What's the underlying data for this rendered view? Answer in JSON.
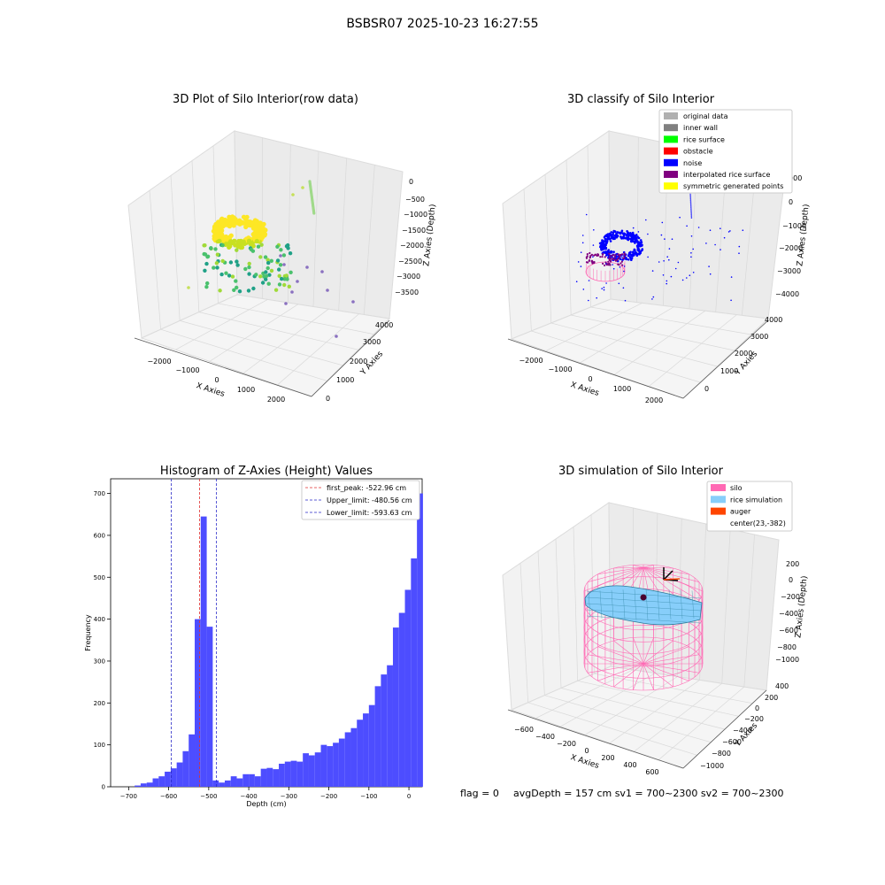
{
  "figure": {
    "suptitle": "BSBSR07 2025-10-23 16:27:55",
    "footer": {
      "flag": "flag = 0",
      "avg": "avgDepth = 157 cm  sv1 = 700~2300  sv2 = 700~2300"
    }
  },
  "colors": {
    "hist_bar": "#4d4dff",
    "first_peak": "#e03030",
    "limits": "#2828c8",
    "silo": "#ff69b4",
    "rice": "#87cefa",
    "auger": "#ff4500",
    "noise": "#0000ff",
    "interp": "#800080",
    "grid": "#d9d9d9"
  },
  "chart_data": [
    {
      "type": "scatter",
      "title": "3D Plot of Silo Interior(row data)",
      "projection": "3d",
      "xlabel": "X Axies",
      "ylabel": "Y Axies",
      "zlabel": "Z Axies (Depth)",
      "x_ticks": [
        "−2000",
        "−1000",
        "0",
        "1000",
        "2000"
      ],
      "y_ticks": [
        "0",
        "1000",
        "2000",
        "3000",
        "4000"
      ],
      "z_ticks": [
        "0",
        "−500",
        "−1000",
        "−1500",
        "−2000",
        "−2500",
        "−3000",
        "−3500"
      ],
      "colormap": "viridis (by depth)",
      "grid": true
    },
    {
      "type": "scatter",
      "title": "3D classify of Silo Interior",
      "projection": "3d",
      "xlabel": "X Axies",
      "ylabel": "Y Axies",
      "zlabel": "Z Axies (Depth)",
      "x_ticks": [
        "−2000",
        "−1000",
        "0",
        "1000",
        "2000"
      ],
      "y_ticks": [
        "0",
        "1000",
        "2000",
        "3000",
        "4000"
      ],
      "z_ticks": [
        "1000",
        "0",
        "−1000",
        "−2000",
        "−3000",
        "−4000"
      ],
      "legend_position": "top-right",
      "legend": [
        {
          "label": "original data",
          "color": "#b0b0b0"
        },
        {
          "label": "inner wall",
          "color": "#808080"
        },
        {
          "label": "rice surface",
          "color": "#00ff00"
        },
        {
          "label": "obstacle",
          "color": "#ff0000"
        },
        {
          "label": "noise",
          "color": "#0000ff"
        },
        {
          "label": "interpolated rice surface",
          "color": "#800080"
        },
        {
          "label": "symmetric generated points",
          "color": "#ffff00"
        }
      ],
      "grid": true
    },
    {
      "type": "bar",
      "title": "Histogram of Z-Axies (Height) Values",
      "xlabel": "Depth (cm)",
      "ylabel": "Frequency",
      "xlim": [
        -745,
        33
      ],
      "ylim": [
        0,
        735
      ],
      "x_ticks": [
        -700,
        -600,
        -500,
        -400,
        -300,
        -200,
        -100,
        0
      ],
      "y_ticks": [
        0,
        100,
        200,
        300,
        400,
        500,
        600,
        700
      ],
      "bins": [
        [
          -685,
          -670,
          3
        ],
        [
          -670,
          -655,
          8
        ],
        [
          -655,
          -640,
          10
        ],
        [
          -640,
          -625,
          20
        ],
        [
          -625,
          -610,
          25
        ],
        [
          -610,
          -595,
          36
        ],
        [
          -595,
          -580,
          44
        ],
        [
          -580,
          -565,
          58
        ],
        [
          -565,
          -550,
          85
        ],
        [
          -550,
          -535,
          125
        ],
        [
          -535,
          -520,
          400
        ],
        [
          -520,
          -505,
          645
        ],
        [
          -505,
          -490,
          382
        ],
        [
          -490,
          -475,
          15
        ],
        [
          -475,
          -460,
          10
        ],
        [
          -460,
          -445,
          15
        ],
        [
          -445,
          -430,
          25
        ],
        [
          -430,
          -415,
          20
        ],
        [
          -415,
          -400,
          30
        ],
        [
          -400,
          -385,
          30
        ],
        [
          -385,
          -370,
          25
        ],
        [
          -370,
          -355,
          43
        ],
        [
          -355,
          -340,
          45
        ],
        [
          -340,
          -325,
          42
        ],
        [
          -325,
          -310,
          55
        ],
        [
          -310,
          -295,
          60
        ],
        [
          -295,
          -280,
          62
        ],
        [
          -280,
          -265,
          60
        ],
        [
          -265,
          -250,
          80
        ],
        [
          -250,
          -235,
          75
        ],
        [
          -235,
          -220,
          82
        ],
        [
          -220,
          -205,
          100
        ],
        [
          -205,
          -190,
          97
        ],
        [
          -190,
          -175,
          105
        ],
        [
          -175,
          -160,
          115
        ],
        [
          -160,
          -145,
          130
        ],
        [
          -145,
          -130,
          140
        ],
        [
          -130,
          -115,
          160
        ],
        [
          -115,
          -100,
          175
        ],
        [
          -100,
          -85,
          195
        ],
        [
          -85,
          -70,
          240
        ],
        [
          -70,
          -55,
          268
        ],
        [
          -55,
          -40,
          290
        ],
        [
          -40,
          -25,
          380
        ],
        [
          -25,
          -10,
          415
        ],
        [
          -10,
          5,
          470
        ],
        [
          5,
          20,
          545
        ],
        [
          20,
          35,
          700
        ]
      ],
      "vlines": [
        {
          "label": "first_peak: -522.96 cm",
          "x": -522.96,
          "color": "#e03030"
        },
        {
          "label": "Upper_limit: -480.56 cm",
          "x": -480.56,
          "color": "#2828c8"
        },
        {
          "label": "Lower_limit: -593.63 cm",
          "x": -593.63,
          "color": "#2828c8"
        }
      ],
      "legend_position": "top-right"
    },
    {
      "type": "surface",
      "title": "3D simulation of Silo Interior",
      "projection": "3d",
      "xlabel": "X Axies",
      "ylabel": "Y Axies",
      "zlabel": "Z Axies (Depth)",
      "x_ticks": [
        "−600",
        "−400",
        "−200",
        "0",
        "200",
        "400",
        "600"
      ],
      "y_ticks": [
        "400",
        "200",
        "0",
        "−200",
        "−400",
        "−600",
        "−800",
        "−1000"
      ],
      "z_ticks": [
        "200",
        "0",
        "−200",
        "−400",
        "−600",
        "−800",
        "−1000"
      ],
      "legend_position": "top-right",
      "legend": [
        {
          "label": "silo",
          "color": "#ff69b4"
        },
        {
          "label": "rice simulation",
          "color": "#87cefa"
        },
        {
          "label": "auger",
          "color": "#ff4500"
        },
        {
          "label": "center(23,-382)",
          "color": ""
        }
      ],
      "grid": true
    }
  ]
}
